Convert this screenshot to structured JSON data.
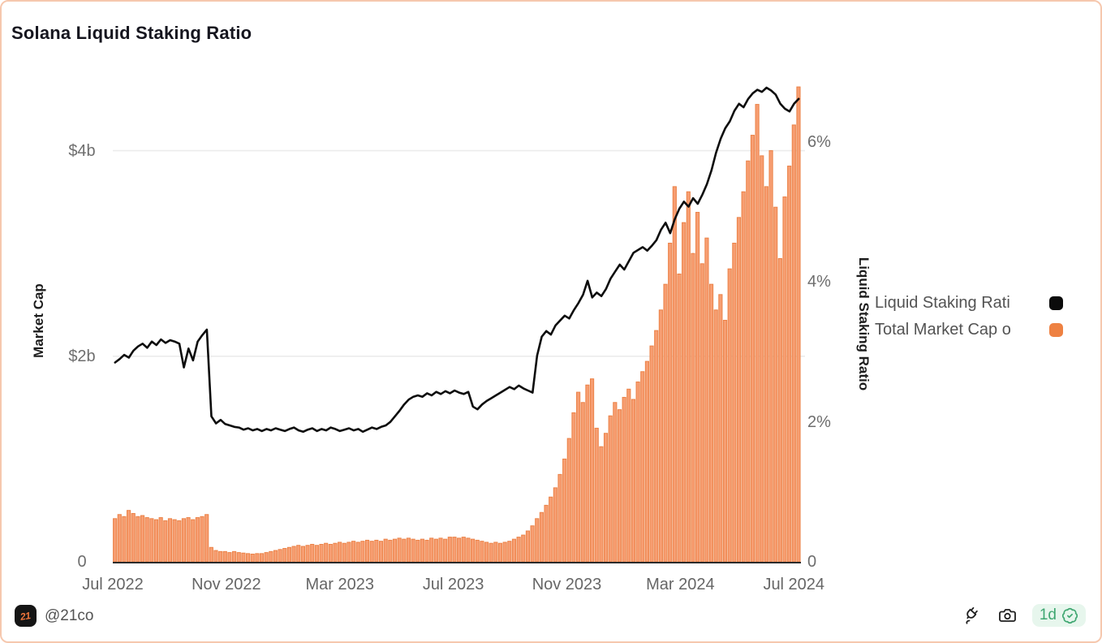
{
  "header": {
    "title": "Solana Liquid Staking Ratio"
  },
  "footer": {
    "logo_text": "21",
    "handle": "@21co",
    "icons": [
      "plug-icon",
      "camera-icon",
      "verified-badge"
    ],
    "badge": {
      "text": "1d",
      "bg": "#e7f6ed",
      "fg": "#3fa771"
    }
  },
  "chart_data": {
    "type": "bar+line combo",
    "title": "Solana Liquid Staking Ratio",
    "grid": "horizontal, light",
    "legend_position": "right",
    "x_tick_labels": [
      "Jul 2022",
      "Nov 2022",
      "Mar 2023",
      "Jul 2023",
      "Nov 2023",
      "Mar 2024",
      "Jul 2024"
    ],
    "x_tick_months": [
      0,
      4,
      8,
      12,
      16,
      20,
      24
    ],
    "x_domain_months": [
      0,
      24.25
    ],
    "left_axis": {
      "title": "Market Cap",
      "unit": "$b",
      "max": 4.66,
      "ticks": [
        {
          "label": "$4b",
          "value": 4
        },
        {
          "label": "$2b",
          "value": 2
        },
        {
          "label": "0",
          "value": 0
        }
      ],
      "grid_values": [
        4,
        2
      ]
    },
    "right_axis": {
      "title": "Liquid Staking Ratio",
      "unit": "%",
      "max": 6.85,
      "ticks": [
        {
          "label": "6%",
          "value": 6
        },
        {
          "label": "4%",
          "value": 4
        },
        {
          "label": "2%",
          "value": 2
        },
        {
          "label": "0",
          "value": 0
        }
      ]
    },
    "series": [
      {
        "name": "Liquid Staking Rati",
        "type": "line",
        "axis": "right",
        "color": "#0d0d0d",
        "values": [
          2.85,
          2.9,
          2.96,
          2.92,
          3.02,
          3.08,
          3.12,
          3.06,
          3.15,
          3.1,
          3.18,
          3.13,
          3.17,
          3.15,
          3.12,
          2.78,
          3.05,
          2.88,
          3.15,
          3.24,
          3.32,
          2.08,
          1.98,
          2.03,
          1.97,
          1.95,
          1.93,
          1.92,
          1.89,
          1.91,
          1.88,
          1.9,
          1.87,
          1.9,
          1.88,
          1.91,
          1.89,
          1.87,
          1.9,
          1.92,
          1.88,
          1.86,
          1.89,
          1.91,
          1.87,
          1.9,
          1.88,
          1.92,
          1.9,
          1.87,
          1.89,
          1.91,
          1.88,
          1.9,
          1.86,
          1.89,
          1.92,
          1.9,
          1.93,
          1.95,
          2.0,
          2.08,
          2.16,
          2.25,
          2.32,
          2.36,
          2.38,
          2.36,
          2.41,
          2.38,
          2.43,
          2.4,
          2.44,
          2.41,
          2.45,
          2.42,
          2.4,
          2.43,
          2.22,
          2.18,
          2.25,
          2.3,
          2.34,
          2.38,
          2.42,
          2.46,
          2.5,
          2.47,
          2.52,
          2.48,
          2.45,
          2.42,
          2.95,
          3.22,
          3.3,
          3.25,
          3.38,
          3.45,
          3.52,
          3.48,
          3.6,
          3.7,
          3.82,
          4.02,
          3.78,
          3.85,
          3.8,
          3.9,
          4.05,
          4.15,
          4.25,
          4.18,
          4.3,
          4.42,
          4.46,
          4.5,
          4.45,
          4.52,
          4.6,
          4.75,
          4.85,
          4.7,
          4.9,
          5.05,
          5.15,
          5.08,
          5.2,
          5.12,
          5.25,
          5.4,
          5.6,
          5.85,
          6.05,
          6.2,
          6.3,
          6.45,
          6.55,
          6.5,
          6.62,
          6.7,
          6.75,
          6.72,
          6.78,
          6.74,
          6.68,
          6.55,
          6.48,
          6.44,
          6.55,
          6.62
        ]
      },
      {
        "name": "Total Market Cap o",
        "type": "bar",
        "axis": "left",
        "color": "#F79E72",
        "stroke": "#EB8247",
        "values": [
          0.42,
          0.46,
          0.44,
          0.5,
          0.47,
          0.44,
          0.45,
          0.43,
          0.42,
          0.41,
          0.43,
          0.4,
          0.42,
          0.41,
          0.4,
          0.42,
          0.43,
          0.41,
          0.43,
          0.44,
          0.46,
          0.14,
          0.11,
          0.1,
          0.1,
          0.09,
          0.1,
          0.09,
          0.085,
          0.08,
          0.075,
          0.08,
          0.08,
          0.09,
          0.1,
          0.11,
          0.12,
          0.13,
          0.14,
          0.15,
          0.16,
          0.15,
          0.16,
          0.17,
          0.16,
          0.17,
          0.18,
          0.17,
          0.18,
          0.19,
          0.18,
          0.19,
          0.2,
          0.19,
          0.2,
          0.21,
          0.2,
          0.21,
          0.2,
          0.22,
          0.21,
          0.22,
          0.23,
          0.22,
          0.23,
          0.22,
          0.21,
          0.22,
          0.21,
          0.23,
          0.22,
          0.23,
          0.22,
          0.24,
          0.24,
          0.23,
          0.24,
          0.23,
          0.22,
          0.21,
          0.2,
          0.19,
          0.18,
          0.19,
          0.18,
          0.19,
          0.2,
          0.22,
          0.24,
          0.26,
          0.3,
          0.35,
          0.42,
          0.48,
          0.55,
          0.63,
          0.72,
          0.85,
          1.0,
          1.2,
          1.45,
          1.65,
          1.55,
          1.72,
          1.78,
          1.3,
          1.12,
          1.25,
          1.42,
          1.55,
          1.48,
          1.6,
          1.68,
          1.58,
          1.75,
          1.85,
          1.95,
          2.1,
          2.25,
          2.45,
          2.7,
          3.1,
          3.65,
          2.8,
          3.3,
          3.6,
          3.0,
          3.4,
          2.9,
          3.15,
          2.7,
          2.45,
          2.6,
          2.35,
          2.85,
          3.1,
          3.35,
          3.6,
          3.9,
          4.15,
          4.45,
          3.95,
          3.65,
          4.0,
          3.45,
          2.95,
          3.55,
          3.85,
          4.25,
          4.62
        ]
      }
    ]
  },
  "legend": {
    "items": [
      {
        "label": "Liquid Staking Rati",
        "color": "#0b0b0b"
      },
      {
        "label": "Total Market Cap o",
        "color": "#ee8142"
      }
    ]
  }
}
